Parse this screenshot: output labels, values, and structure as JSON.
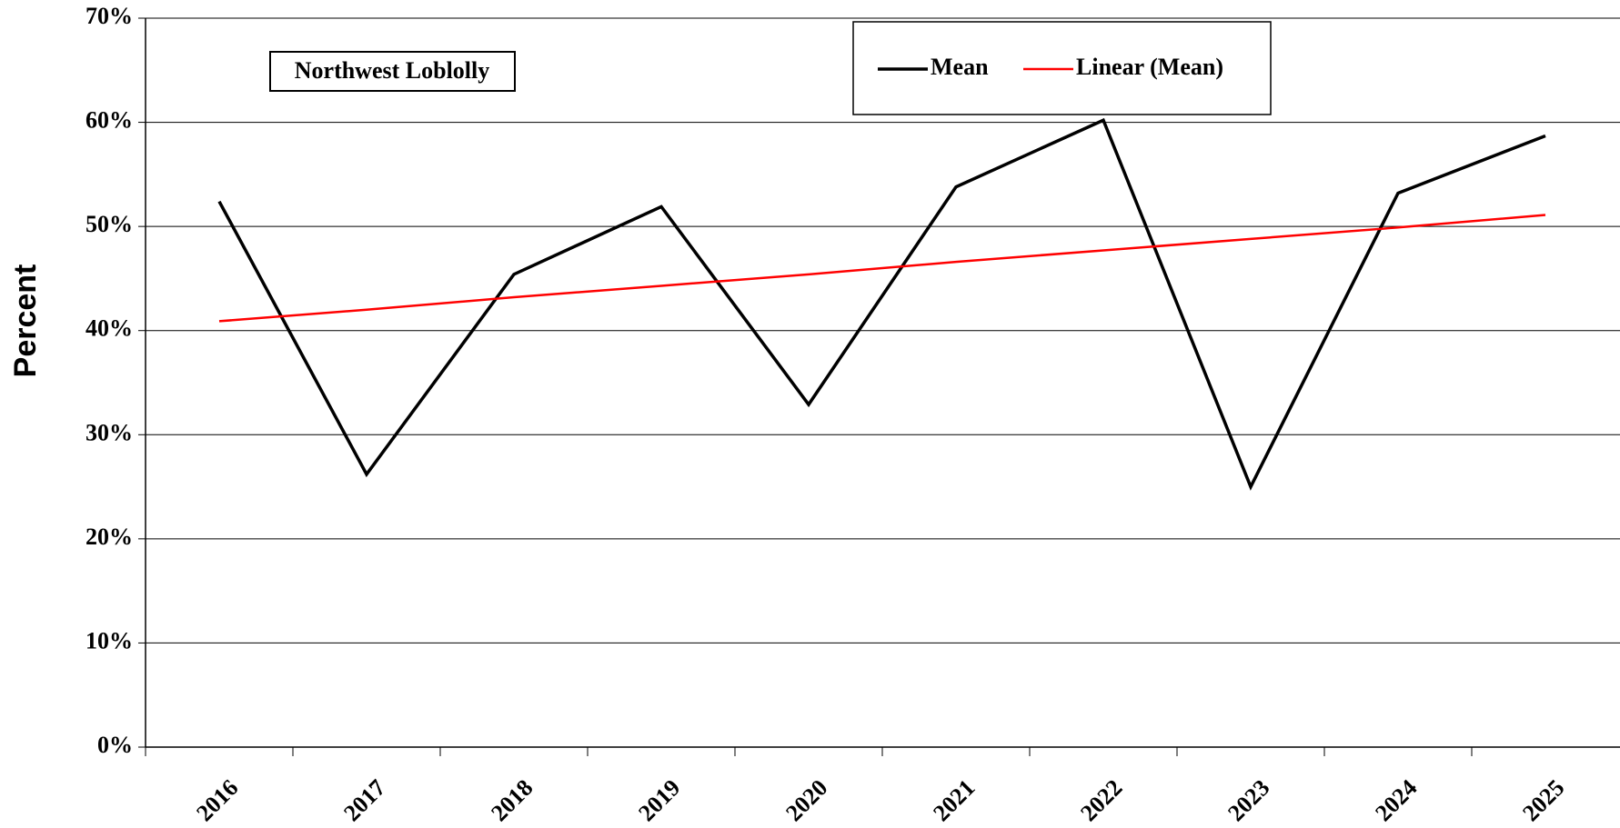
{
  "chart_data": {
    "type": "line",
    "y_title": "Percent",
    "annotation": "Northwest Loblolly",
    "categories": [
      "2016",
      "2017",
      "2018",
      "2019",
      "2020",
      "2021",
      "2022",
      "2023",
      "2024",
      "2025"
    ],
    "series": [
      {
        "name": "Mean",
        "color": "#000000",
        "values": [
          52.4,
          26.2,
          45.4,
          51.9,
          32.9,
          53.8,
          60.2,
          25.0,
          53.2,
          58.7
        ]
      },
      {
        "name": "Linear (Mean)",
        "color": "#ff0000",
        "values": [
          40.9,
          42.0,
          43.2,
          44.3,
          45.4,
          46.6,
          47.7,
          48.8,
          49.9,
          51.1
        ]
      }
    ],
    "ylim": [
      0,
      70
    ],
    "yticks": [
      {
        "value": 0,
        "label": "0%"
      },
      {
        "value": 10,
        "label": "10%"
      },
      {
        "value": 20,
        "label": "20%"
      },
      {
        "value": 30,
        "label": "30%"
      },
      {
        "value": 40,
        "label": "40%"
      },
      {
        "value": 50,
        "label": "50%"
      },
      {
        "value": 60,
        "label": "60%"
      },
      {
        "value": 70,
        "label": "70%"
      }
    ],
    "grid": true
  }
}
